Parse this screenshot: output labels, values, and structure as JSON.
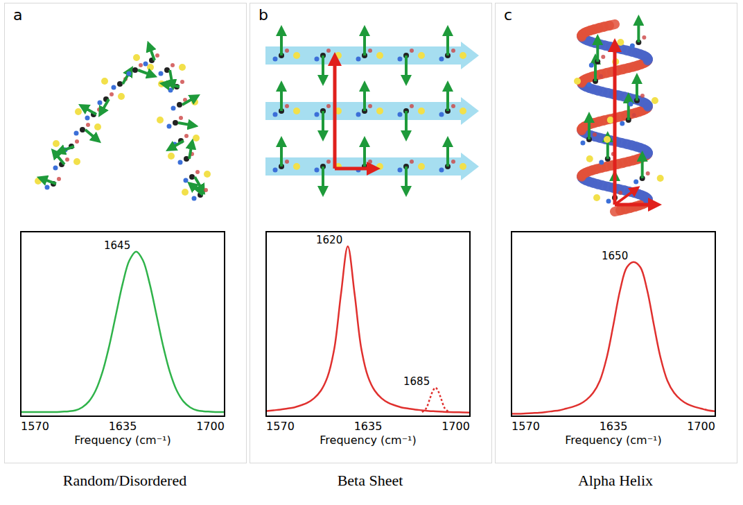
{
  "chart_data": [
    {
      "type": "line",
      "panel": "a",
      "title": "Random/Disordered",
      "xlabel": "Frequency (cm⁻¹)",
      "xlim": [
        1560,
        1710
      ],
      "xticks": [
        1570,
        1635,
        1700
      ],
      "ylim": [
        0,
        1.05
      ],
      "tick_labels": "x",
      "grid": false,
      "series": [
        {
          "color": "#2fb34a",
          "line_style": "solid",
          "x": [
            1560,
            1565,
            1570,
            1575,
            1580,
            1585,
            1590,
            1595,
            1600,
            1605,
            1610,
            1615,
            1620,
            1625,
            1630,
            1635,
            1640,
            1645,
            1650,
            1655,
            1660,
            1665,
            1670,
            1675,
            1680,
            1685,
            1690,
            1695,
            1700,
            1705,
            1710
          ],
          "values": [
            0.02,
            0.02,
            0.02,
            0.02,
            0.02,
            0.02,
            0.022,
            0.024,
            0.03,
            0.047,
            0.081,
            0.144,
            0.249,
            0.398,
            0.578,
            0.756,
            0.89,
            0.94,
            0.89,
            0.756,
            0.578,
            0.398,
            0.249,
            0.144,
            0.081,
            0.047,
            0.03,
            0.024,
            0.022,
            0.02,
            0.02
          ]
        }
      ],
      "annotations": [
        {
          "text": "1645",
          "x": 1645,
          "y": 0.94
        }
      ]
    },
    {
      "type": "line",
      "panel": "b",
      "title": "Beta Sheet",
      "xlabel": "Frequency (cm⁻¹)",
      "xlim": [
        1560,
        1710
      ],
      "xticks": [
        1570,
        1635,
        1700
      ],
      "ylim": [
        0,
        1.05
      ],
      "tick_labels": "x",
      "grid": false,
      "series": [
        {
          "color": "#e0302e",
          "line_style": "solid",
          "x": [
            1560,
            1565,
            1570,
            1575,
            1580,
            1585,
            1590,
            1595,
            1600,
            1605,
            1610,
            1615,
            1620,
            1625,
            1630,
            1635,
            1640,
            1645,
            1650,
            1655,
            1660,
            1665,
            1670,
            1675,
            1680,
            1685,
            1690,
            1695,
            1700,
            1705,
            1710
          ],
          "values": [
            0.026,
            0.03,
            0.034,
            0.04,
            0.046,
            0.058,
            0.073,
            0.099,
            0.142,
            0.222,
            0.384,
            0.7,
            0.97,
            0.7,
            0.384,
            0.222,
            0.142,
            0.099,
            0.073,
            0.058,
            0.046,
            0.04,
            0.034,
            0.03,
            0.026,
            0.024,
            0.022,
            0.02,
            0.019,
            0.018,
            0.017
          ]
        },
        {
          "color": "#e0302e",
          "line_style": "dotted",
          "x": [
            1675,
            1678,
            1681,
            1683,
            1685,
            1687,
            1689,
            1692,
            1695
          ],
          "values": [
            0.02,
            0.04,
            0.1,
            0.14,
            0.16,
            0.14,
            0.1,
            0.04,
            0.02
          ]
        }
      ],
      "annotations": [
        {
          "text": "1620",
          "x": 1620,
          "y": 0.97
        },
        {
          "text": "1685",
          "x": 1685,
          "y": 0.16
        }
      ]
    },
    {
      "type": "line",
      "panel": "c",
      "title": "Alpha Helix",
      "xlabel": "Frequency (cm⁻¹)",
      "xlim": [
        1560,
        1710
      ],
      "xticks": [
        1570,
        1635,
        1700
      ],
      "ylim": [
        0,
        1.05
      ],
      "tick_labels": "x",
      "grid": false,
      "series": [
        {
          "color": "#e0302e",
          "line_style": "solid",
          "x": [
            1560,
            1565,
            1570,
            1575,
            1580,
            1585,
            1590,
            1595,
            1600,
            1605,
            1610,
            1615,
            1620,
            1625,
            1630,
            1635,
            1640,
            1645,
            1650,
            1655,
            1660,
            1665,
            1670,
            1675,
            1680,
            1685,
            1690,
            1695,
            1700,
            1705,
            1710
          ],
          "values": [
            0.01,
            0.01,
            0.012,
            0.014,
            0.016,
            0.02,
            0.025,
            0.03,
            0.04,
            0.05,
            0.065,
            0.09,
            0.13,
            0.2,
            0.33,
            0.52,
            0.72,
            0.85,
            0.88,
            0.85,
            0.72,
            0.52,
            0.33,
            0.2,
            0.13,
            0.09,
            0.065,
            0.05,
            0.04,
            0.03,
            0.025
          ]
        }
      ],
      "annotations": [
        {
          "text": "1650",
          "x": 1650,
          "y": 0.88
        }
      ]
    }
  ]
}
